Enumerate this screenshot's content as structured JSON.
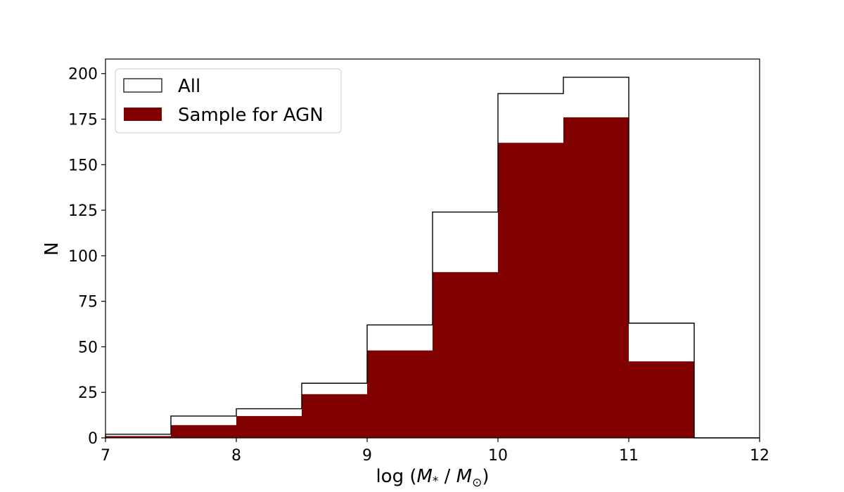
{
  "chart_data": {
    "type": "bar",
    "bin_edges": [
      7,
      7.5,
      8,
      8.5,
      9,
      9.5,
      10,
      10.5,
      11,
      11.5,
      12
    ],
    "series": [
      {
        "name": "All",
        "style": "step-outline",
        "values": [
          2,
          12,
          16,
          30,
          62,
          124,
          189,
          198,
          63,
          0
        ]
      },
      {
        "name": "Sample for AGN",
        "style": "filled",
        "values": [
          1,
          7,
          12,
          24,
          48,
          91,
          162,
          176,
          42,
          0
        ]
      }
    ],
    "xlabel_prefix": "log (",
    "xlabel_m1": "M",
    "xlabel_m1_sub": "*",
    "xlabel_sep": " / ",
    "xlabel_m2": "M",
    "xlabel_m2_sub": "⊙",
    "xlabel_suffix": ")",
    "ylabel": "N",
    "xlim": [
      7,
      12
    ],
    "ylim": [
      0,
      208
    ],
    "xticks": [
      7,
      8,
      9,
      10,
      11,
      12
    ],
    "yticks": [
      0,
      25,
      50,
      75,
      100,
      125,
      150,
      175,
      200
    ],
    "grid": false,
    "legend_position": "top-left",
    "colors": {
      "fill": "#800000",
      "outline": "#000000",
      "background": "#ffffff"
    }
  }
}
